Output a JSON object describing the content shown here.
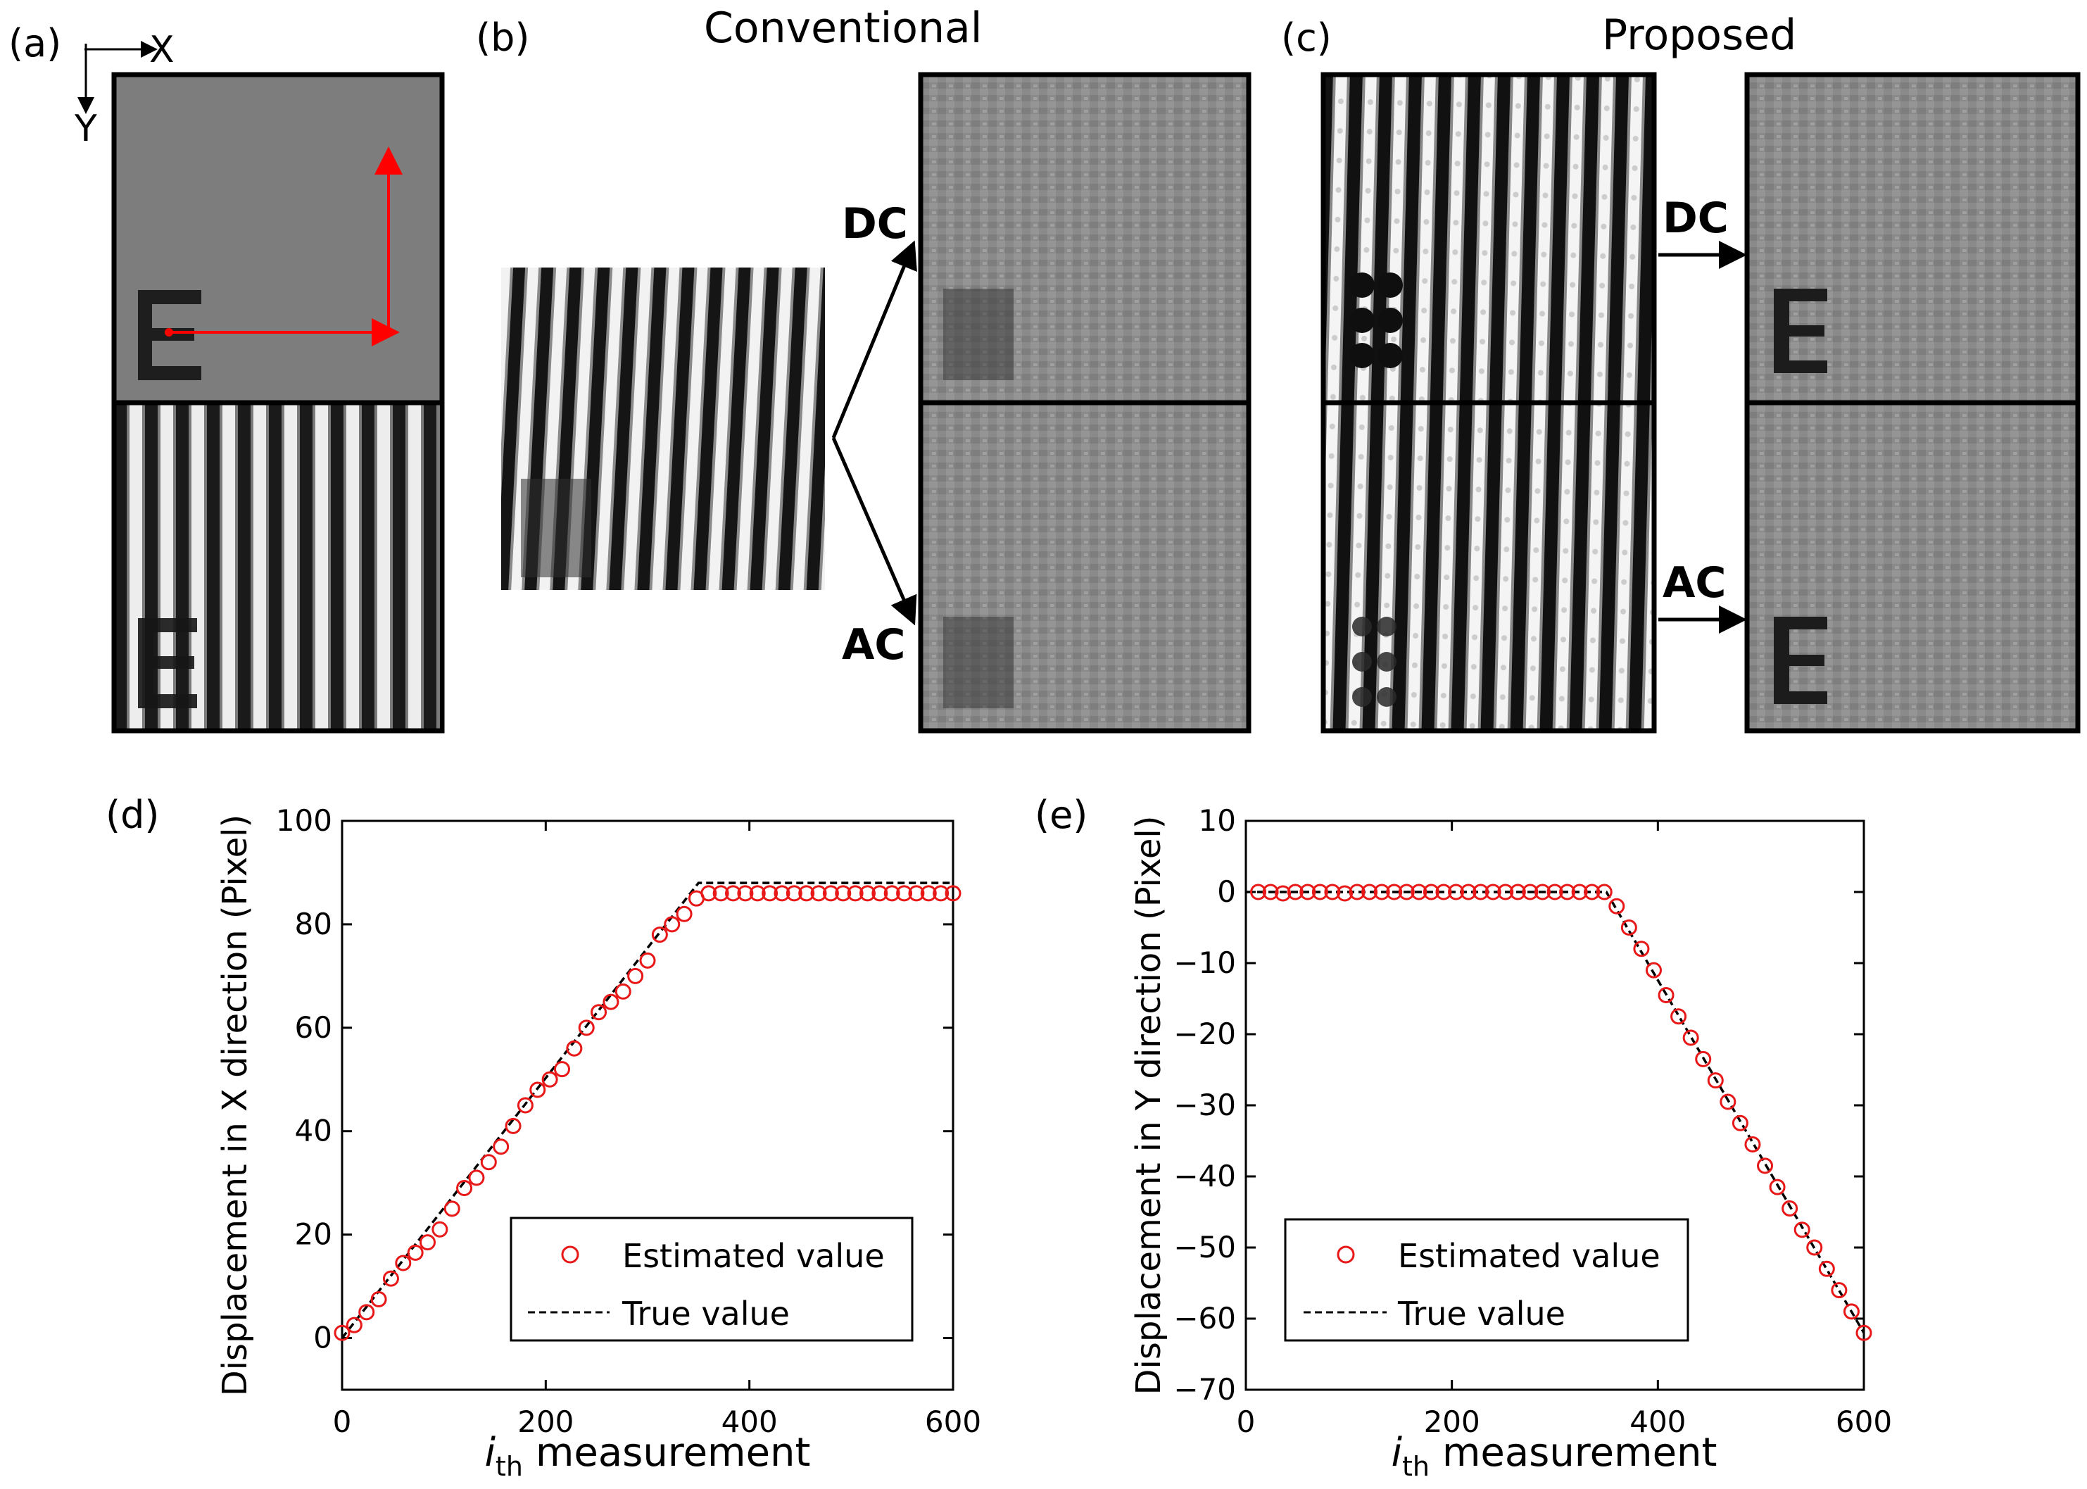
{
  "panels": {
    "a": {
      "label": "(a)",
      "axis_x": "X",
      "axis_y": "Y"
    },
    "b": {
      "label": "(b)",
      "title": "Conventional",
      "dc": "DC",
      "ac": "AC"
    },
    "c": {
      "label": "(c)",
      "title": "Proposed",
      "dc": "DC",
      "ac": "AC"
    }
  },
  "colors": {
    "arrow_red": "#ff0000",
    "marker_red": "#e81818",
    "true_line": "#000000",
    "gray": "#7d7d7d"
  },
  "chart_data": [
    {
      "panel": "(d)",
      "type": "scatter",
      "xlabel_main": "i",
      "xlabel_sub": "th",
      "xlabel_rest": " measurement",
      "ylabel": "Displacement in X direction (Pixel)",
      "xlim": [
        0,
        600
      ],
      "ylim": [
        -10,
        100
      ],
      "xticks": [
        0,
        200,
        400,
        600
      ],
      "yticks": [
        0,
        20,
        40,
        60,
        80,
        100
      ],
      "legend": {
        "position": "bottom-right",
        "estimated": "Estimated value",
        "true": "True value"
      },
      "true_line": {
        "x": [
          0,
          350,
          600
        ],
        "y": [
          0,
          88,
          88
        ]
      },
      "estimated": {
        "x": [
          0,
          12,
          24,
          36,
          48,
          60,
          72,
          84,
          96,
          108,
          120,
          132,
          144,
          156,
          168,
          180,
          192,
          204,
          216,
          228,
          240,
          252,
          264,
          276,
          288,
          300,
          312,
          324,
          336,
          348,
          360,
          372,
          384,
          396,
          408,
          420,
          432,
          444,
          456,
          468,
          480,
          492,
          504,
          516,
          528,
          540,
          552,
          564,
          576,
          588,
          600
        ],
        "y": [
          1,
          2.5,
          5,
          7.5,
          11.5,
          14.5,
          16.5,
          18.5,
          21,
          25,
          29,
          31,
          34,
          37,
          41,
          45,
          48,
          50,
          52,
          56,
          60,
          63,
          65,
          67,
          70,
          73,
          78,
          80,
          82,
          85,
          86,
          86,
          86,
          86,
          86,
          86,
          86,
          86,
          86,
          86,
          86,
          86,
          86,
          86,
          86,
          86,
          86,
          86,
          86,
          86,
          86
        ]
      }
    },
    {
      "panel": "(e)",
      "type": "scatter",
      "xlabel_main": "i",
      "xlabel_sub": "th",
      "xlabel_rest": " measurement",
      "ylabel": "Displacement in Y direction (Pixel)",
      "xlim": [
        0,
        600
      ],
      "ylim": [
        -70,
        10
      ],
      "xticks": [
        0,
        200,
        400,
        600
      ],
      "yticks": [
        10,
        0,
        -10,
        -20,
        -30,
        -40,
        -50,
        -60,
        -70
      ],
      "legend": {
        "position": "bottom-left",
        "estimated": "Estimated value",
        "true": "True value"
      },
      "true_line": {
        "x": [
          0,
          350,
          600
        ],
        "y": [
          0,
          0,
          -62
        ]
      },
      "estimated": {
        "x": [
          12,
          24,
          36,
          48,
          60,
          72,
          84,
          96,
          108,
          120,
          132,
          144,
          156,
          168,
          180,
          192,
          204,
          216,
          228,
          240,
          252,
          264,
          276,
          288,
          300,
          312,
          324,
          336,
          348,
          360,
          372,
          384,
          396,
          408,
          420,
          432,
          444,
          456,
          468,
          480,
          492,
          504,
          516,
          528,
          540,
          552,
          564,
          576,
          588,
          600
        ],
        "y": [
          0,
          0,
          -0.2,
          0,
          0,
          0,
          0,
          -0.2,
          0,
          0,
          0,
          0,
          0,
          0,
          0,
          0,
          0,
          0,
          0,
          0,
          0,
          0,
          0,
          0,
          0,
          0,
          0,
          0,
          0,
          -2,
          -5,
          -8,
          -11,
          -14.5,
          -17.5,
          -20.5,
          -23.5,
          -26.5,
          -29.5,
          -32.5,
          -35.5,
          -38.5,
          -41.5,
          -44.5,
          -47.5,
          -50,
          -53,
          -56,
          -59,
          -62
        ]
      }
    }
  ]
}
